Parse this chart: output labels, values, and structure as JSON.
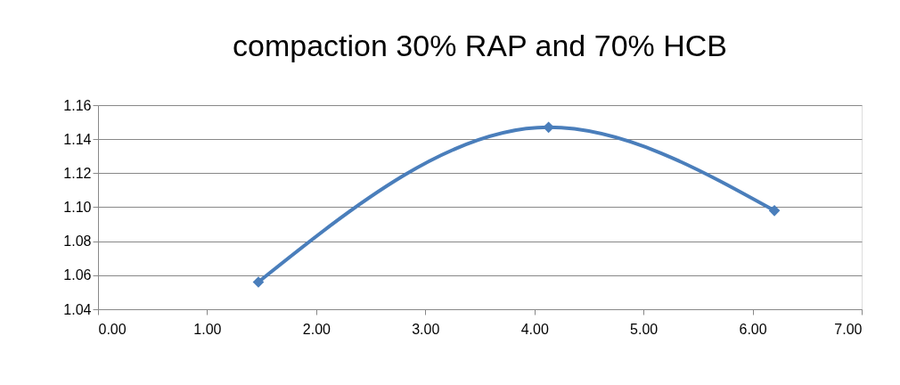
{
  "chart_data": {
    "type": "line",
    "title": "compaction 30% RAP and 70% HCB",
    "x": [
      1.47,
      4.13,
      6.2
    ],
    "series": [
      {
        "color": "#4a7ebb",
        "values": [
          1.056,
          1.147,
          1.098
        ]
      }
    ],
    "xlim": [
      0,
      7
    ],
    "xticks": [
      {
        "value": 0,
        "label": "0.00"
      },
      {
        "value": 1,
        "label": "1.00"
      },
      {
        "value": 2,
        "label": "2.00"
      },
      {
        "value": 3,
        "label": "3.00"
      },
      {
        "value": 4,
        "label": "4.00"
      },
      {
        "value": 5,
        "label": "5.00"
      },
      {
        "value": 6,
        "label": "6.00"
      },
      {
        "value": 7,
        "label": "7.00"
      }
    ],
    "ylim": [
      1.04,
      1.16
    ],
    "yticks": [
      1.04,
      1.06,
      1.08,
      {
        "value": 1.1,
        "label": "1.10"
      },
      1.12,
      1.14,
      1.16
    ],
    "grid": "y",
    "marker": "diamond",
    "line_style": "solid"
  }
}
